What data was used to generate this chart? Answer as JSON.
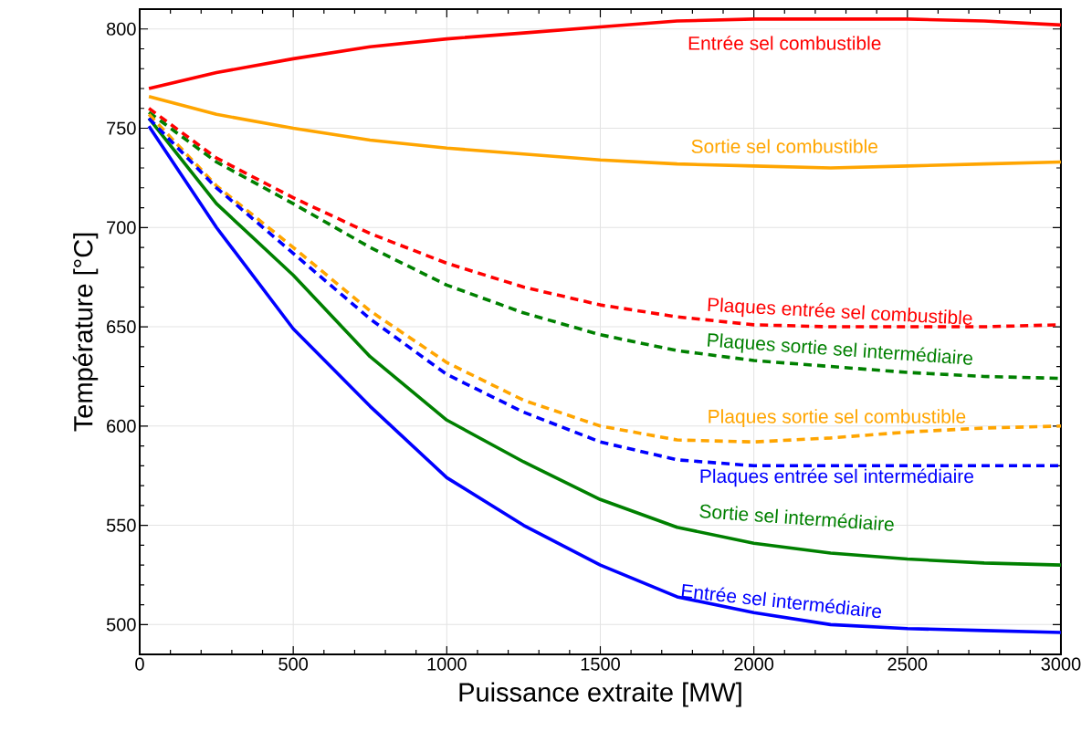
{
  "chart_data": {
    "type": "line",
    "xlabel": "Puissance extraite [MW]",
    "ylabel": "Température [°C]",
    "x": [
      30,
      250,
      500,
      750,
      1000,
      1250,
      1500,
      1750,
      2000,
      2250,
      2500,
      2750,
      3000
    ],
    "xlim": [
      0,
      3000
    ],
    "ylim": [
      485,
      810
    ],
    "xticks": [
      0,
      500,
      1000,
      1500,
      2000,
      2500,
      3000
    ],
    "yticks": [
      500,
      550,
      600,
      650,
      700,
      750,
      800
    ],
    "grid": true,
    "series": [
      {
        "name": "Entrée sel combustible",
        "color": "#ff0000",
        "line_style": "solid",
        "values": [
          770,
          778,
          785,
          791,
          795,
          798,
          801,
          804,
          805,
          805,
          805,
          804,
          802
        ]
      },
      {
        "name": "Sortie sel combustible",
        "color": "#ffa500",
        "line_style": "solid",
        "values": [
          766,
          757,
          750,
          744,
          740,
          737,
          734,
          732,
          731,
          730,
          731,
          732,
          733
        ]
      },
      {
        "name": "Plaques entrée sel combustible",
        "color": "#ff0000",
        "line_style": "dashed",
        "values": [
          760,
          735,
          715,
          697,
          682,
          670,
          661,
          655,
          651,
          650,
          650,
          650,
          651
        ]
      },
      {
        "name": "Plaques sortie sel intermédiaire",
        "color": "#008000",
        "line_style": "dashed",
        "values": [
          758,
          733,
          712,
          690,
          671,
          657,
          646,
          638,
          633,
          630,
          627,
          625,
          624
        ]
      },
      {
        "name": "Plaques sortie sel combustible",
        "color": "#ffa500",
        "line_style": "dashed",
        "values": [
          757,
          721,
          690,
          658,
          632,
          613,
          600,
          593,
          592,
          594,
          597,
          599,
          600
        ]
      },
      {
        "name": "Plaques entrée sel intermédiaire",
        "color": "#0000ff",
        "line_style": "dashed",
        "values": [
          755,
          720,
          687,
          654,
          626,
          607,
          592,
          583,
          580,
          580,
          580,
          580,
          580
        ]
      },
      {
        "name": "Sortie sel intermédiaire",
        "color": "#008000",
        "line_style": "solid",
        "values": [
          755,
          712,
          676,
          635,
          603,
          582,
          563,
          549,
          541,
          536,
          533,
          531,
          530
        ]
      },
      {
        "name": "Entrée sel intermédiaire",
        "color": "#0000ff",
        "line_style": "solid",
        "values": [
          751,
          700,
          649,
          610,
          574,
          550,
          530,
          514,
          506,
          500,
          498,
          497,
          496
        ]
      }
    ]
  }
}
